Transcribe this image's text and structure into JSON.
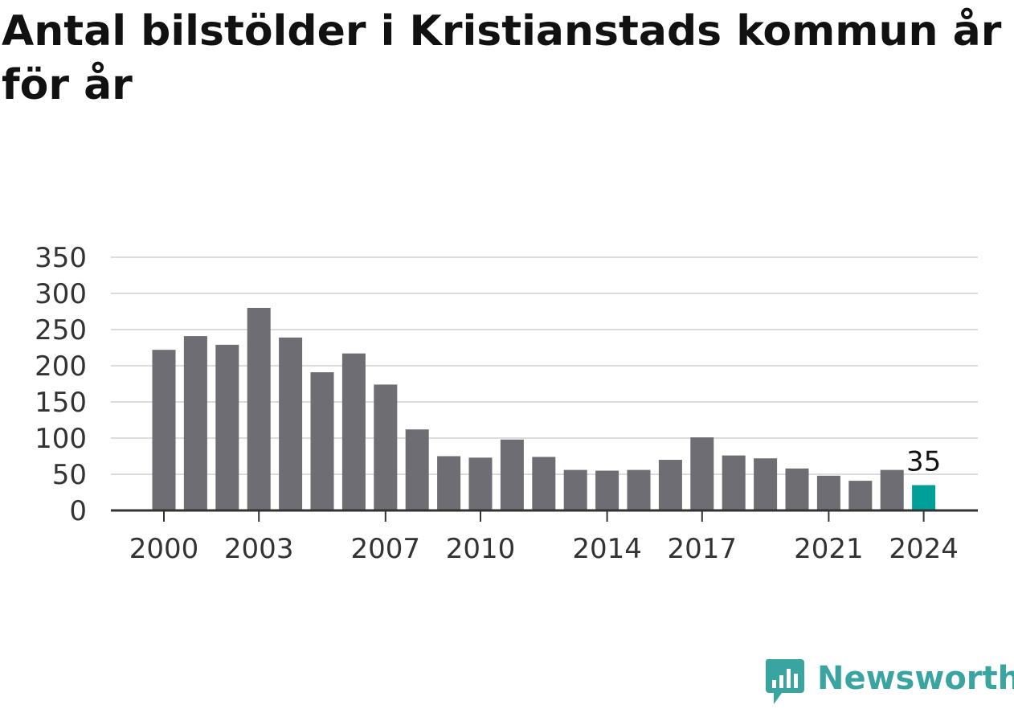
{
  "title": "Antal bilstölder i Kristianstads kommun år för år",
  "brand": {
    "name": "Newsworthy",
    "color": "#3aa5a0"
  },
  "colors": {
    "bar": "#6d6d73",
    "highlight": "#00a096",
    "grid": "#dcdcdc",
    "axis": "#333333",
    "text": "#333333"
  },
  "chart_data": {
    "type": "bar",
    "title": "Antal bilstölder i Kristianstads kommun år för år",
    "xlabel": "",
    "ylabel": "",
    "categories": [
      "2000",
      "2001",
      "2002",
      "2003",
      "2004",
      "2005",
      "2006",
      "2007",
      "2008",
      "2009",
      "2010",
      "2011",
      "2012",
      "2013",
      "2014",
      "2015",
      "2016",
      "2017",
      "2018",
      "2019",
      "2020",
      "2021",
      "2022",
      "2023",
      "2024"
    ],
    "values": [
      222,
      241,
      229,
      280,
      239,
      191,
      217,
      174,
      112,
      75,
      73,
      98,
      74,
      56,
      55,
      56,
      70,
      101,
      76,
      72,
      58,
      48,
      41,
      56,
      35
    ],
    "x_tick_labels": [
      "2000",
      "2003",
      "2007",
      "2010",
      "2014",
      "2017",
      "2021",
      "2024"
    ],
    "y_ticks": [
      0,
      50,
      100,
      150,
      200,
      250,
      300,
      350
    ],
    "ylim": [
      0,
      350
    ],
    "highlight": {
      "category": "2024",
      "label": "35"
    },
    "grid": true,
    "legend": "none"
  }
}
